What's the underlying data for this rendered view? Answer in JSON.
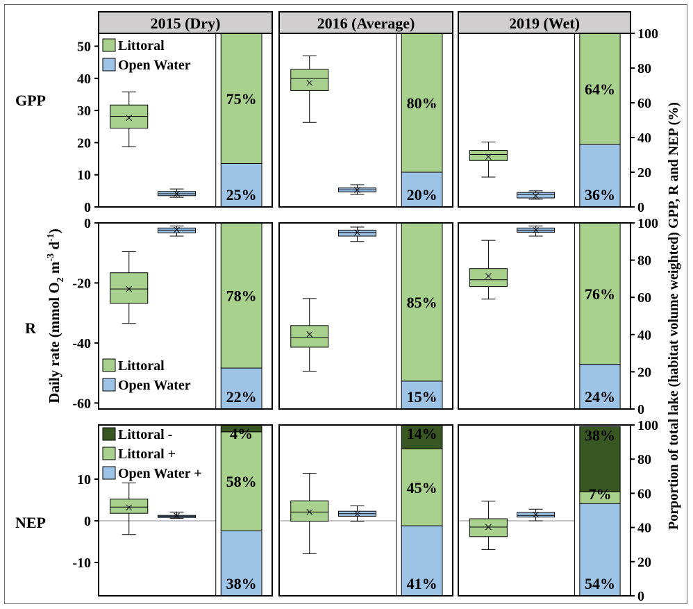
{
  "chart_data": {
    "type": "box",
    "years": [
      {
        "key": "2015",
        "label": "2015 (Dry)"
      },
      {
        "key": "2016",
        "label": "2016 (Average)"
      },
      {
        "key": "2019",
        "label": "2019 (Wet)"
      }
    ],
    "y_axis_label": "Daily rate (mmol O2 m-3 d-1)",
    "y_axis_label_parts": {
      "pre": "Daily rate (mmol O",
      "sub": "2",
      "mid": " m",
      "sup1": "-3",
      "mid2": " d",
      "sup2": "-1",
      "post": ")"
    },
    "right_axis_label": "Porportion of total  lake (habitat volume weighted) GPP, R and NEP (%)",
    "proportion_ticks": [
      0,
      20,
      40,
      60,
      80,
      100
    ],
    "rows": [
      {
        "key": "GPP",
        "label": "GPP",
        "ylim": [
          0,
          54
        ],
        "ticks": [
          0,
          10,
          20,
          30,
          40,
          50
        ],
        "zero_line": false,
        "legend": {
          "position": "top-left",
          "entries": [
            {
              "label": "Littoral",
              "color": "#a9d18e"
            },
            {
              "label": "Open Water",
              "color": "#9dc3e6"
            }
          ]
        },
        "panels": [
          {
            "year": "2015",
            "boxes": [
              {
                "series": "Littoral",
                "min": 18.7,
                "q1": 24.5,
                "median": 28.2,
                "q3": 31.7,
                "max": 35.8,
                "mean": 27.7
              },
              {
                "series": "Open Water",
                "min": 3.0,
                "q1": 3.5,
                "median": 4.1,
                "q3": 4.8,
                "max": 5.6,
                "mean": 4.1
              }
            ],
            "stack": [
              {
                "series": "Open Water",
                "value": 25,
                "label": "25%"
              },
              {
                "series": "Littoral",
                "value": 75,
                "label": "75%"
              }
            ]
          },
          {
            "year": "2016",
            "boxes": [
              {
                "series": "Littoral",
                "min": 26.3,
                "q1": 36.2,
                "median": 40.0,
                "q3": 42.8,
                "max": 47.0,
                "mean": 38.6
              },
              {
                "series": "Open Water",
                "min": 3.9,
                "q1": 4.7,
                "median": 5.3,
                "q3": 5.9,
                "max": 6.9,
                "mean": 5.3
              }
            ],
            "stack": [
              {
                "series": "Open Water",
                "value": 20,
                "label": "20%"
              },
              {
                "series": "Littoral",
                "value": 80,
                "label": "80%"
              }
            ]
          },
          {
            "year": "2019",
            "boxes": [
              {
                "series": "Littoral",
                "min": 9.3,
                "q1": 14.4,
                "median": 16.3,
                "q3": 17.6,
                "max": 20.2,
                "mean": 15.6
              },
              {
                "series": "Open Water",
                "min": 2.4,
                "q1": 2.8,
                "median": 3.9,
                "q3": 4.5,
                "max": 5.0,
                "mean": 3.5
              }
            ],
            "stack": [
              {
                "series": "Open Water",
                "value": 36,
                "label": "36%"
              },
              {
                "series": "Littoral",
                "value": 64,
                "label": "64%"
              }
            ]
          }
        ]
      },
      {
        "key": "R",
        "label": "R",
        "ylim": [
          -62,
          0
        ],
        "ticks": [
          0,
          -20,
          -40,
          -60
        ],
        "zero_line": false,
        "legend": {
          "position": "bottom-left",
          "entries": [
            {
              "label": "Littoral",
              "color": "#a9d18e"
            },
            {
              "label": "Open Water",
              "color": "#9dc3e6"
            }
          ]
        },
        "panels": [
          {
            "year": "2015",
            "boxes": [
              {
                "series": "Littoral",
                "min": -33.5,
                "q1": -26.8,
                "median": -22.0,
                "q3": -16.6,
                "max": -9.6,
                "mean": -22.0
              },
              {
                "series": "Open Water",
                "min": -4.4,
                "q1": -3.3,
                "median": -2.4,
                "q3": -1.7,
                "max": -1.0,
                "mean": -2.3
              }
            ],
            "stack": [
              {
                "series": "Open Water",
                "value": 22,
                "label": "22%"
              },
              {
                "series": "Littoral",
                "value": 78,
                "label": "78%"
              }
            ]
          },
          {
            "year": "2016",
            "boxes": [
              {
                "series": "Littoral",
                "min": -49.4,
                "q1": -41.4,
                "median": -38.3,
                "q3": -34.2,
                "max": -25.2,
                "mean": -37.1
              },
              {
                "series": "Open Water",
                "min": -6.2,
                "q1": -4.4,
                "median": -3.2,
                "q3": -2.4,
                "max": -1.4,
                "mean": -3.2
              }
            ],
            "stack": [
              {
                "series": "Open Water",
                "value": 15,
                "label": "15%"
              },
              {
                "series": "Littoral",
                "value": 85,
                "label": "85%"
              }
            ]
          },
          {
            "year": "2019",
            "boxes": [
              {
                "series": "Littoral",
                "min": -25.4,
                "q1": -21.2,
                "median": -18.9,
                "q3": -15.2,
                "max": -5.8,
                "mean": -17.7
              },
              {
                "series": "Open Water",
                "min": -4.4,
                "q1": -3.1,
                "median": -2.4,
                "q3": -1.7,
                "max": -1.0,
                "mean": -2.4
              }
            ],
            "stack": [
              {
                "series": "Open Water",
                "value": 24,
                "label": "24%"
              },
              {
                "series": "Littoral",
                "value": 76,
                "label": "76%"
              }
            ]
          }
        ]
      },
      {
        "key": "NEP",
        "label": "NEP",
        "ylim": [
          -18,
          23
        ],
        "ticks": [
          10,
          0,
          -10
        ],
        "zero_line": true,
        "legend": {
          "position": "top-left",
          "entries": [
            {
              "label": "Littoral -",
              "color": "#385723"
            },
            {
              "label": "Littoral +",
              "color": "#a9d18e"
            },
            {
              "label": "Open Water +",
              "color": "#9dc3e6"
            }
          ]
        },
        "panels": [
          {
            "year": "2015",
            "boxes": [
              {
                "series": "Littoral",
                "min": -3.3,
                "q1": 1.8,
                "median": 3.3,
                "q3": 5.2,
                "max": 9.1,
                "mean": 3.2
              },
              {
                "series": "Open Water",
                "min": 0.6,
                "q1": 0.8,
                "median": 1.1,
                "q3": 1.3,
                "max": 2.1,
                "mean": 1.2
              }
            ],
            "stack": [
              {
                "series": "Open Water +",
                "value": 38,
                "label": "38%"
              },
              {
                "series": "Littoral +",
                "value": 58,
                "label": "58%"
              },
              {
                "series": "Littoral -",
                "value": 4,
                "label": "4%"
              }
            ]
          },
          {
            "year": "2016",
            "boxes": [
              {
                "series": "Littoral",
                "min": -7.9,
                "q1": -0.1,
                "median": 2.1,
                "q3": 4.8,
                "max": 11.4,
                "mean": 2.1
              },
              {
                "series": "Open Water",
                "min": -0.1,
                "q1": 1.1,
                "median": 1.7,
                "q3": 2.3,
                "max": 3.6,
                "mean": 1.7
              }
            ],
            "stack": [
              {
                "series": "Open Water +",
                "value": 41,
                "label": "41%"
              },
              {
                "series": "Littoral +",
                "value": 45,
                "label": "45%"
              },
              {
                "series": "Littoral -",
                "value": 14,
                "label": "14%"
              }
            ]
          },
          {
            "year": "2019",
            "boxes": [
              {
                "series": "Littoral",
                "min": -6.9,
                "q1": -3.8,
                "median": -1.5,
                "q3": 0.5,
                "max": 4.7,
                "mean": -1.5
              },
              {
                "series": "Open Water",
                "min": 0.0,
                "q1": 0.9,
                "median": 1.3,
                "q3": 2.0,
                "max": 2.8,
                "mean": 1.5
              }
            ],
            "stack": [
              {
                "series": "Open Water +",
                "value": 54,
                "label": "54%"
              },
              {
                "series": "Littoral +",
                "value": 7,
                "label": "7%"
              },
              {
                "series": "Littoral -",
                "value": 38,
                "label": "38%"
              }
            ]
          }
        ]
      }
    ]
  },
  "colors": {
    "littoral": "#a9d18e",
    "open_water": "#9dc3e6",
    "littoral_negative": "#385723",
    "header_fill": "#d0cece"
  }
}
